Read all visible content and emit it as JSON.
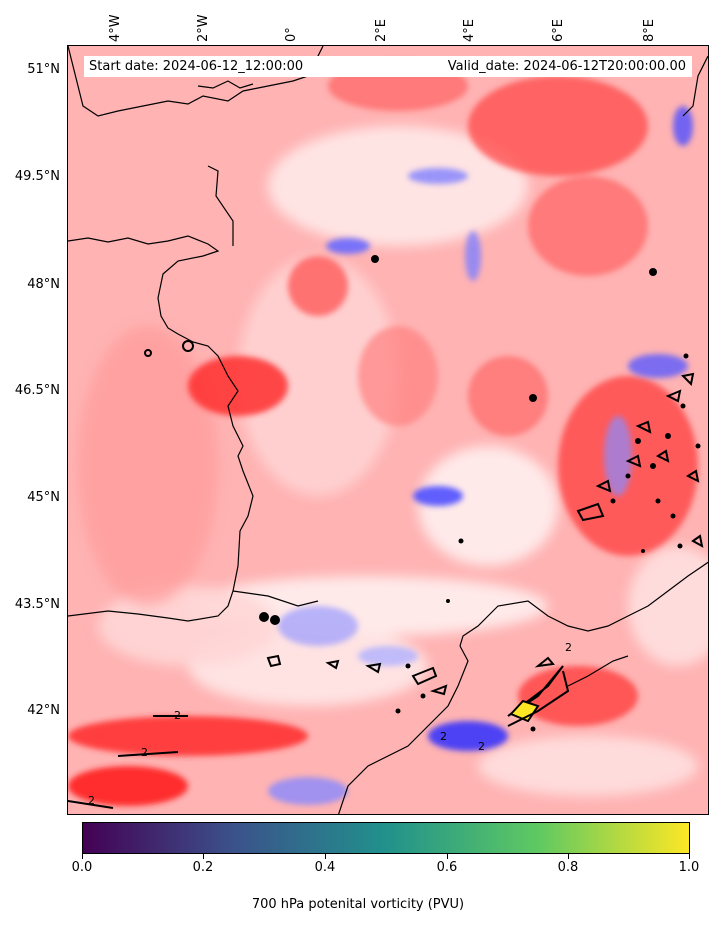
{
  "map": {
    "start_label": "Start date: 2024-06-12_12:00:00",
    "valid_label": "Valid_date: 2024-06-12T20:00:00.00",
    "lon_labels": [
      "4°W",
      "2°W",
      "0°",
      "2°E",
      "4°E",
      "6°E",
      "8°E"
    ],
    "lat_labels": [
      "51°N",
      "49.5°N",
      "48°N",
      "46.5°N",
      "45°N",
      "43.5°N",
      "42°N"
    ],
    "contour_labels": [
      "2",
      "2",
      "2",
      "2",
      "2",
      "2"
    ],
    "palette": {
      "red_strong": "#ff2a2a",
      "red_mid": "#ff7070",
      "red_light": "#ffb3b3",
      "white": "#fff0f0",
      "blue_light": "#b8b8ff",
      "blue_strong": "#2a2aff",
      "yellow": "#fde725",
      "coast": "#000000"
    }
  },
  "colorbar": {
    "ticks": [
      "0.0",
      "0.2",
      "0.4",
      "0.6",
      "0.8",
      "1.0"
    ],
    "label": "700 hPa potenital vorticity (PVU)",
    "colors": [
      "#440154",
      "#3b528b",
      "#21918c",
      "#5ec962",
      "#fde725"
    ]
  }
}
